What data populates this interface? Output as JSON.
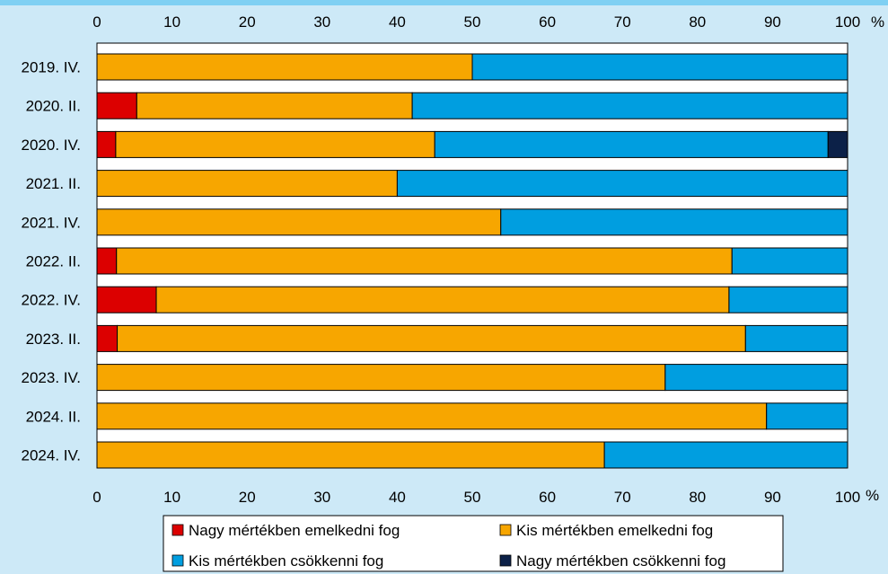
{
  "chart_data": {
    "type": "bar",
    "orientation": "horizontal",
    "stacked": true,
    "percent_symbol": "%",
    "xlim": [
      0,
      100
    ],
    "x_ticks": [
      "0",
      "10",
      "20",
      "30",
      "40",
      "50",
      "60",
      "70",
      "80",
      "90",
      "100"
    ],
    "categories": [
      "2019. IV.",
      "2020. II.",
      "2020. IV.",
      "2021. II.",
      "2021. IV.",
      "2022. II.",
      "2022. IV.",
      "2023. II.",
      "2023. IV.",
      "2024. II.",
      "2024. IV."
    ],
    "series": [
      {
        "name": "Nagy mértékben emelkedni fog",
        "color": "#dc0000",
        "values": [
          0,
          5.3,
          2.5,
          0,
          0,
          2.6,
          7.9,
          2.7,
          0,
          0,
          0
        ]
      },
      {
        "name": "Kis mértékben emelkedni fog",
        "color": "#f7a600",
        "values": [
          50,
          36.7,
          42.5,
          40,
          53.8,
          82,
          76.3,
          83.7,
          75.7,
          89.2,
          67.6
        ]
      },
      {
        "name": "Kis mértékben csökkenni fog",
        "color": "#009ee0",
        "values": [
          50,
          58,
          52.4,
          60,
          46.2,
          15.4,
          15.8,
          13.6,
          24.3,
          10.8,
          32.4
        ]
      },
      {
        "name": "Nagy mértékben csökkenni fog",
        "color": "#0c2148",
        "values": [
          0,
          0,
          2.6,
          0,
          0,
          0,
          0,
          0,
          0,
          0,
          0
        ]
      }
    ],
    "legend_position": "bottom"
  }
}
